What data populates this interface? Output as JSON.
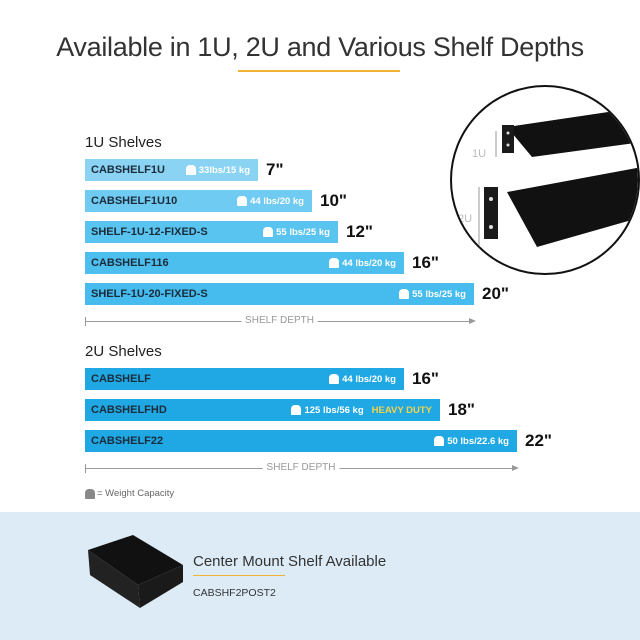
{
  "title": "Available in 1U, 2U and Various Shelf Depths",
  "sections": [
    {
      "label": "1U Shelves",
      "shelves": [
        {
          "code": "CABSHELF1U",
          "weight": "33lbs/15 kg",
          "depth": "7\"",
          "depth_in": 7,
          "color": "#8ad3f3"
        },
        {
          "code": "CABSHELF1U10",
          "weight": "44 lbs/20 kg",
          "depth": "10\"",
          "depth_in": 10,
          "color": "#6fcbf2"
        },
        {
          "code": "SHELF-1U-12-FIXED-S",
          "weight": "55 lbs/25 kg",
          "depth": "12\"",
          "depth_in": 12,
          "color": "#5ac4f0"
        },
        {
          "code": "CABSHELF116",
          "weight": "44 lbs/20 kg",
          "depth": "16\"",
          "depth_in": 16,
          "color": "#4dbfef"
        },
        {
          "code": "SHELF-1U-20-FIXED-S",
          "weight": "55 lbs/25 kg",
          "depth": "20\"",
          "depth_in": 20,
          "color": "#45bbee"
        }
      ],
      "axis_label": "SHELF DEPTH"
    },
    {
      "label": "2U Shelves",
      "shelves": [
        {
          "code": "CABSHELF",
          "weight": "44 lbs/20 kg",
          "depth": "16\"",
          "depth_in": 16,
          "color": "#1fa8e3"
        },
        {
          "code": "CABSHELFHD",
          "weight": "125 lbs/56 kg",
          "badge": "HEAVY DUTY",
          "depth": "18\"",
          "depth_in": 18,
          "color": "#1fa8e3"
        },
        {
          "code": "CABSHELF22",
          "weight": "50 lbs/22.6 kg",
          "depth": "22\"",
          "depth_in": 22,
          "color": "#1fa8e3"
        }
      ],
      "axis_label": "SHELF DEPTH"
    }
  ],
  "legend": "= Weight Capacity",
  "inset": {
    "label_1u": "1U",
    "label_2u": "2U"
  },
  "center_mount": {
    "title": "Center Mount Shelf Available",
    "code": "CABSHF2POST2"
  },
  "colors": {
    "accent": "#f2b233",
    "heavy_duty": "#f6d34a",
    "band": "#dcebf6"
  }
}
